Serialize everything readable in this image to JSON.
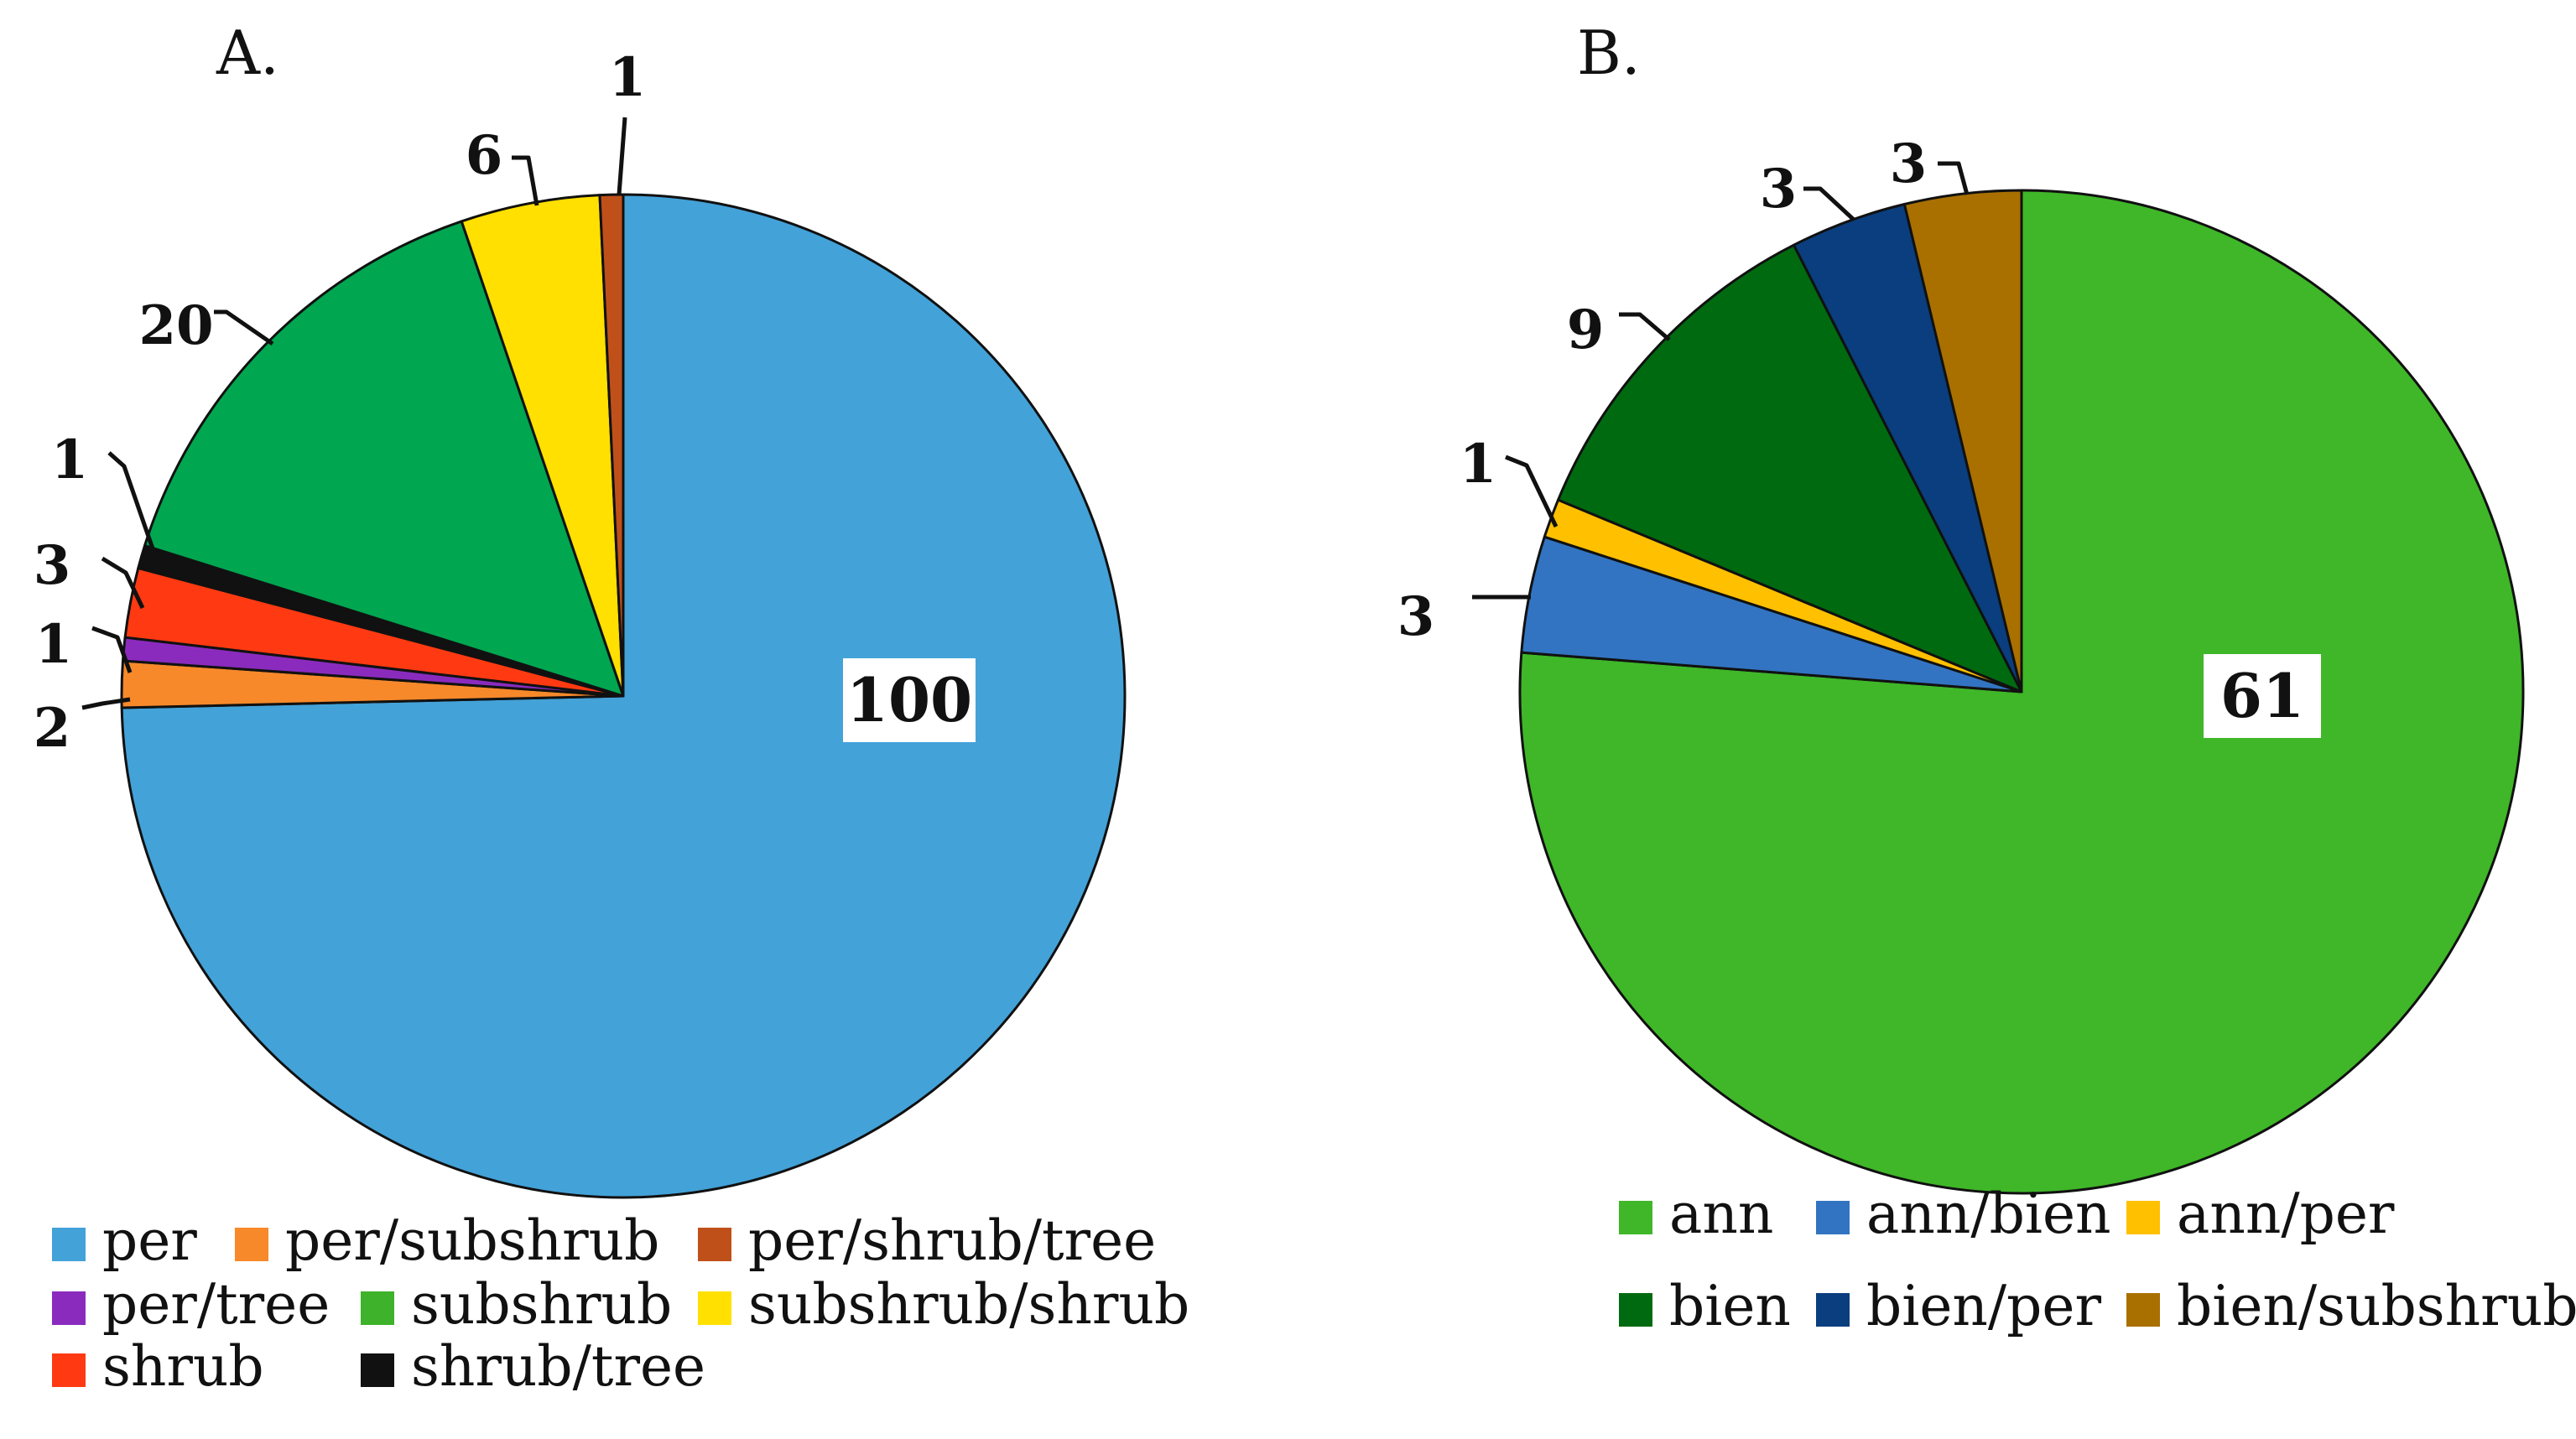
{
  "chart_data": [
    {
      "type": "pie",
      "panel_label": "A.",
      "categories": [
        "per",
        "per/subshrub",
        "per/tree",
        "shrub",
        "shrub/tree",
        "subshrub",
        "subshrub/shrub",
        "per/shrub/tree"
      ],
      "values": [
        100,
        2,
        1,
        3,
        1,
        20,
        6,
        1
      ],
      "colors": [
        "#43A2D8",
        "#F7892A",
        "#8A2BBE",
        "#FF3A12",
        "#111111",
        "#00A650",
        "#FFE000",
        "#C0501A"
      ],
      "data_labels": [
        "100",
        "2",
        "1",
        "3",
        "1",
        "20",
        "6",
        "1"
      ],
      "legend": {
        "placement": "bottom",
        "entries": [
          {
            "label": "per",
            "color": "#43A2D8"
          },
          {
            "label": "per/subshrub",
            "color": "#F7892A"
          },
          {
            "label": "per/shrub/tree",
            "color": "#C0501A"
          },
          {
            "label": "per/tree",
            "color": "#8A2BBE"
          },
          {
            "label": "subshrub",
            "color": "#3DB22A"
          },
          {
            "label": "subshrub/shrub",
            "color": "#FFE000"
          },
          {
            "label": "shrub",
            "color": "#FF3A12"
          },
          {
            "label": "shrub/tree",
            "color": "#111111"
          }
        ]
      }
    },
    {
      "type": "pie",
      "panel_label": "B.",
      "categories": [
        "ann",
        "ann/bien",
        "ann/per",
        "bien",
        "bien/per",
        "bien/subshrub"
      ],
      "values": [
        61,
        3,
        1,
        9,
        3,
        3
      ],
      "colors": [
        "#3FB728",
        "#3274C2",
        "#FFC000",
        "#006A10",
        "#0A3E7E",
        "#A97000"
      ],
      "data_labels": [
        "61",
        "3",
        "1",
        "9",
        "3",
        "3"
      ],
      "legend": {
        "placement": "bottom",
        "entries": [
          {
            "label": "ann",
            "color": "#3FB728"
          },
          {
            "label": "ann/bien",
            "color": "#3274C2"
          },
          {
            "label": "ann/per",
            "color": "#FFC000"
          },
          {
            "label": "bien",
            "color": "#006A10"
          },
          {
            "label": "bien/per",
            "color": "#0A3E7E"
          },
          {
            "label": "bien/subshrub",
            "color": "#A97000"
          }
        ]
      }
    }
  ]
}
